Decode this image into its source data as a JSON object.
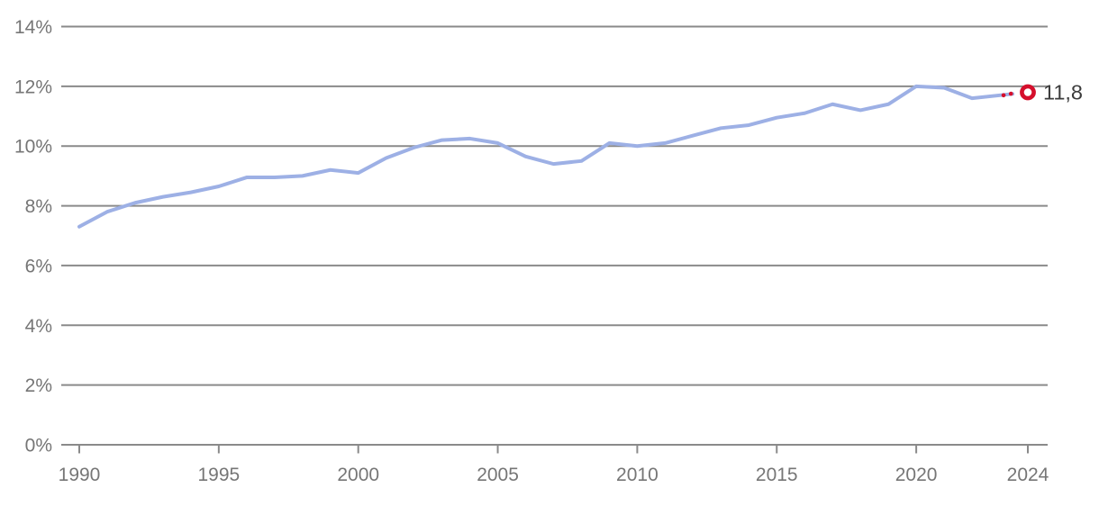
{
  "chart_data": {
    "type": "line",
    "title": "",
    "xlabel": "",
    "ylabel": "",
    "ylim": [
      0,
      14
    ],
    "y_ticks": [
      {
        "value": 0,
        "label": "0%"
      },
      {
        "value": 2,
        "label": "2%"
      },
      {
        "value": 4,
        "label": "4%"
      },
      {
        "value": 6,
        "label": "6%"
      },
      {
        "value": 8,
        "label": "8%"
      },
      {
        "value": 10,
        "label": "10%"
      },
      {
        "value": 12,
        "label": "12%"
      },
      {
        "value": 14,
        "label": "14%"
      }
    ],
    "x_ticks": [
      {
        "value": 1990,
        "label": "1990"
      },
      {
        "value": 1995,
        "label": "1995"
      },
      {
        "value": 2000,
        "label": "2000"
      },
      {
        "value": 2005,
        "label": "2005"
      },
      {
        "value": 2010,
        "label": "2010"
      },
      {
        "value": 2015,
        "label": "2015"
      },
      {
        "value": 2020,
        "label": "2020"
      },
      {
        "value": 2024,
        "label": "2024"
      }
    ],
    "xlim": [
      1990,
      2024
    ],
    "grid": "horizontal",
    "legend_position": "none",
    "x": [
      1990,
      1991,
      1992,
      1993,
      1994,
      1995,
      1996,
      1997,
      1998,
      1999,
      2000,
      2001,
      2002,
      2003,
      2004,
      2005,
      2006,
      2007,
      2008,
      2009,
      2010,
      2011,
      2012,
      2013,
      2014,
      2015,
      2016,
      2017,
      2018,
      2019,
      2020,
      2021,
      2022,
      2023
    ],
    "series": [
      {
        "name": "historical-line",
        "style": "solid",
        "values": [
          7.3,
          7.8,
          8.1,
          8.3,
          8.45,
          8.65,
          8.95,
          8.95,
          9.0,
          9.2,
          9.1,
          9.6,
          9.95,
          10.2,
          10.25,
          10.1,
          9.65,
          9.4,
          9.5,
          10.1,
          10.0,
          10.1,
          10.35,
          10.6,
          10.7,
          10.95,
          11.1,
          11.4,
          11.2,
          11.4,
          12.0,
          11.95,
          11.6,
          11.7
        ]
      }
    ],
    "projection": {
      "name": "projection-segment",
      "style": "dotted",
      "x": [
        2023,
        2024
      ],
      "values": [
        11.7,
        11.8
      ],
      "marker": "open-circle",
      "end_label": "11,8"
    }
  },
  "colors": {
    "background": "#ffffff",
    "gridline": "#8a8a8a",
    "axis": "#8a8a8a",
    "tick_label": "#767676",
    "series_line": "#9db0e5",
    "projection": "#d50f2c",
    "end_label": "#3c3c3c"
  }
}
